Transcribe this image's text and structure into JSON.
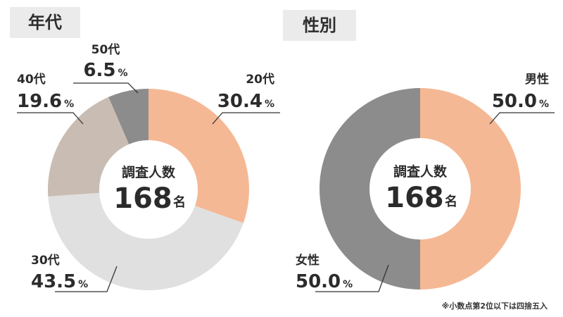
{
  "labels": {
    "age_title": "年代",
    "gender_title": "性別",
    "center_label": "調査人数",
    "center_value": "168",
    "center_unit": "名",
    "footnote": "※小数点第2位以下は四捨五入"
  },
  "colors": {
    "salmon": "#f5b894",
    "light_gray": "#e0e0e0",
    "beige": "#c9bdb3",
    "dark_gray": "#8c8c8c",
    "line": "#333333"
  },
  "chart_data": [
    {
      "type": "pie",
      "title": "年代",
      "center_text": "調査人数 168名",
      "unit": "%",
      "slices": [
        {
          "label": "20代",
          "value": 30.4,
          "value_text": "30.4",
          "color": "#f5b894"
        },
        {
          "label": "30代",
          "value": 43.5,
          "value_text": "43.5",
          "color": "#e0e0e0"
        },
        {
          "label": "40代",
          "value": 19.6,
          "value_text": "19.6",
          "color": "#c9bdb3"
        },
        {
          "label": "50代",
          "value": 6.5,
          "value_text": "6.5",
          "color": "#8c8c8c"
        }
      ]
    },
    {
      "type": "pie",
      "title": "性別",
      "center_text": "調査人数 168名",
      "unit": "%",
      "slices": [
        {
          "label": "男性",
          "value": 50.0,
          "value_text": "50.0",
          "color": "#f5b894"
        },
        {
          "label": "女性",
          "value": 50.0,
          "value_text": "50.0",
          "color": "#8c8c8c"
        }
      ]
    }
  ]
}
